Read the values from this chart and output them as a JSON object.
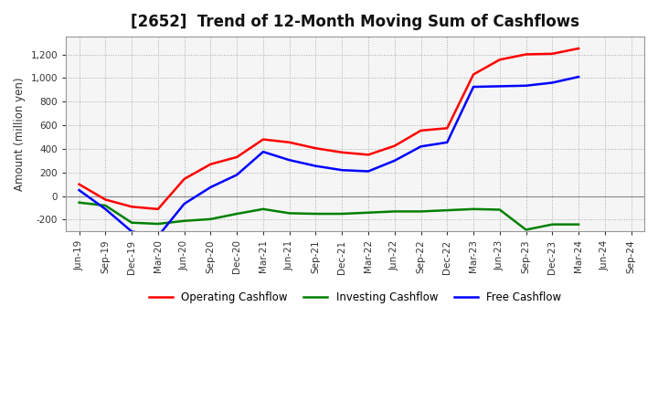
{
  "title": "[2652]  Trend of 12-Month Moving Sum of Cashflows",
  "ylabel": "Amount (million yen)",
  "ylim": [
    -300,
    1350
  ],
  "yticks": [
    -200,
    0,
    200,
    400,
    600,
    800,
    1000,
    1200
  ],
  "background_color": "#ffffff",
  "plot_bg_color": "#f5f5f5",
  "x_labels": [
    "Jun-19",
    "Sep-19",
    "Dec-19",
    "Mar-20",
    "Jun-20",
    "Sep-20",
    "Dec-20",
    "Mar-21",
    "Jun-21",
    "Sep-21",
    "Dec-21",
    "Mar-22",
    "Jun-22",
    "Sep-22",
    "Dec-22",
    "Mar-23",
    "Jun-23",
    "Sep-23",
    "Dec-23",
    "Mar-24",
    "Jun-24",
    "Sep-24"
  ],
  "operating": [
    100,
    -30,
    -90,
    -110,
    145,
    270,
    330,
    480,
    455,
    405,
    370,
    350,
    425,
    555,
    575,
    1030,
    1155,
    1200,
    1205,
    1250,
    null,
    null
  ],
  "investing": [
    -55,
    -80,
    -225,
    -235,
    -210,
    -195,
    -150,
    -110,
    -145,
    -150,
    -150,
    -140,
    -130,
    -130,
    -120,
    -110,
    -115,
    -285,
    -240,
    -240,
    null,
    null
  ],
  "free": [
    50,
    -110,
    -300,
    -340,
    -65,
    75,
    180,
    375,
    305,
    255,
    220,
    210,
    300,
    420,
    455,
    925,
    930,
    935,
    960,
    1010,
    null,
    null
  ],
  "op_color": "#ff0000",
  "inv_color": "#008000",
  "free_color": "#0000ff",
  "line_width": 1.8,
  "legend_labels": [
    "Operating Cashflow",
    "Investing Cashflow",
    "Free Cashflow"
  ]
}
